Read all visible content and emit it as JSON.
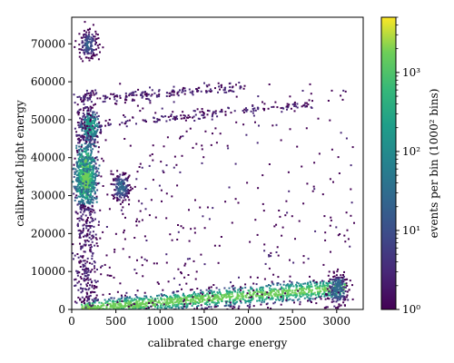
{
  "chart_data": {
    "type": "heatmap",
    "title": "",
    "xlabel": "calibrated charge energy",
    "ylabel": "calibrated light energy",
    "xlim": [
      0,
      3300
    ],
    "ylim": [
      0,
      77000
    ],
    "x_ticks": [
      0,
      500,
      1000,
      1500,
      2000,
      2500,
      3000
    ],
    "y_ticks": [
      0,
      10000,
      20000,
      30000,
      40000,
      50000,
      60000,
      70000
    ],
    "grid": false,
    "colorbar": {
      "label": "events per bin (1000² bins)",
      "scale": "log",
      "range": [
        1,
        5000
      ],
      "ticks": [
        {
          "value": 1,
          "label": "10⁰"
        },
        {
          "value": 10,
          "label": "10¹"
        },
        {
          "value": 100,
          "label": "10²"
        },
        {
          "value": 1000,
          "label": "10³"
        }
      ],
      "colormap": "viridis"
    },
    "features": [
      {
        "kind": "band",
        "x_start": 100,
        "x_end": 3100,
        "y_start": 500,
        "y_end": 6000,
        "peak_density": 2000
      },
      {
        "kind": "cluster",
        "x": 150,
        "y": 37000,
        "density": 1500
      },
      {
        "kind": "cluster",
        "x": 150,
        "y": 34000,
        "density": 1200
      },
      {
        "kind": "cluster",
        "x": 200,
        "y": 48500,
        "density": 300
      },
      {
        "kind": "cluster",
        "x": 180,
        "y": 70000,
        "density": 20
      },
      {
        "kind": "cluster",
        "x": 550,
        "y": 32500,
        "density": 30
      },
      {
        "kind": "line",
        "x_start": 300,
        "x_end": 1950,
        "y_start": 56000,
        "y_end": 59000,
        "density": 3
      },
      {
        "kind": "line",
        "x_start": 300,
        "x_end": 2750,
        "y_start": 49000,
        "y_end": 54500,
        "density": 3
      },
      {
        "kind": "cluster",
        "x": 3000,
        "y": 5500,
        "density": 40
      }
    ]
  }
}
